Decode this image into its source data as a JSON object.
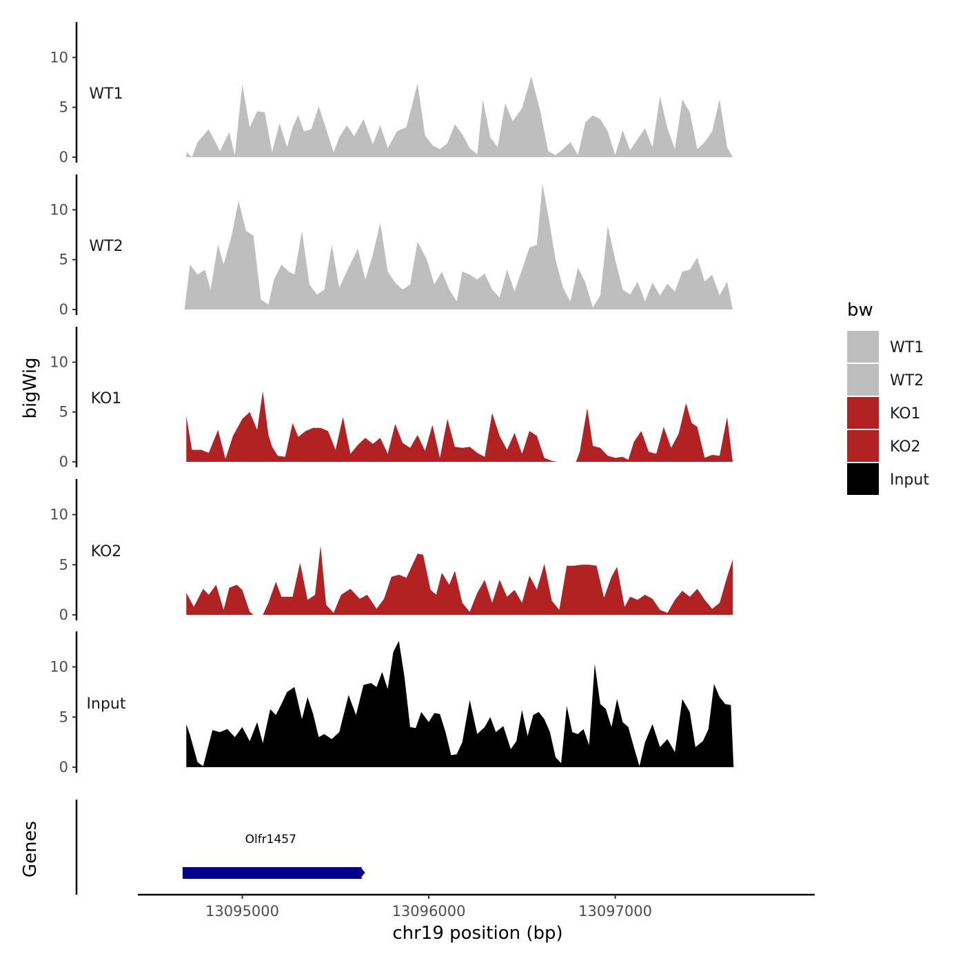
{
  "chart_data": {
    "type": "area",
    "x_axis": {
      "label": "chr19 position (bp)",
      "range": [
        13094440,
        13098070
      ],
      "ticks": [
        13095000,
        13096000,
        13097000
      ],
      "tick_labels": [
        "13095000",
        "13096000",
        "13097000"
      ]
    },
    "y_axis": {
      "label": "bigWig",
      "range": [
        0,
        13
      ],
      "ticks": [
        0,
        5,
        10
      ],
      "tick_labels": [
        "0",
        "5",
        "10"
      ]
    },
    "tracks": [
      {
        "name": "WT1",
        "color": "#bebebe",
        "x": [
          13094700,
          13094730,
          13094760,
          13094820,
          13094880,
          13094930,
          13094960,
          13095000,
          13095040,
          13095080,
          13095120,
          13095160,
          13095200,
          13095240,
          13095270,
          13095300,
          13095330,
          13095370,
          13095410,
          13095450,
          13095490,
          13095520,
          13095560,
          13095600,
          13095650,
          13095700,
          13095740,
          13095780,
          13095830,
          13095880,
          13095940,
          13095980,
          13096020,
          13096060,
          13096100,
          13096140,
          13096180,
          13096220,
          13096260,
          13096290,
          13096330,
          13096370,
          13096410,
          13096450,
          13096500,
          13096550,
          13096600,
          13096640,
          13096680,
          13096720,
          13096760,
          13096800,
          13096840,
          13096880,
          13096920,
          13096960,
          13097000,
          13097040,
          13097080,
          13097120,
          13097160,
          13097200,
          13097240,
          13097280,
          13097320,
          13097360,
          13097400,
          13097440,
          13097480,
          13097520,
          13097560,
          13097600,
          13097630
        ],
        "values": [
          0.5,
          0.0,
          1.5,
          2.8,
          0.6,
          2.5,
          0.2,
          7.3,
          3.0,
          4.6,
          4.5,
          0.5,
          3.4,
          1.0,
          3.0,
          4.2,
          2.6,
          2.8,
          5.1,
          2.8,
          0.5,
          2.0,
          3.2,
          2.1,
          3.8,
          1.3,
          3.2,
          0.9,
          2.6,
          3.0,
          7.4,
          2.2,
          1.2,
          0.8,
          1.4,
          3.3,
          2.3,
          0.9,
          0.3,
          5.8,
          2.0,
          1.0,
          5.4,
          3.6,
          4.9,
          8.1,
          4.5,
          0.6,
          0.2,
          0.8,
          1.5,
          0.2,
          3.5,
          4.2,
          3.8,
          2.6,
          0.2,
          2.7,
          0.7,
          1.8,
          2.9,
          1.0,
          6.1,
          2.9,
          0.8,
          5.8,
          4.5,
          0.8,
          1.5,
          2.6,
          5.8,
          1.0,
          0.0
        ]
      },
      {
        "name": "WT2",
        "color": "#bebebe",
        "x": [
          13094690,
          13094720,
          13094760,
          13094800,
          13094830,
          13094870,
          13094900,
          13094940,
          13094980,
          13095020,
          13095060,
          13095100,
          13095140,
          13095170,
          13095210,
          13095250,
          13095280,
          13095320,
          13095360,
          13095400,
          13095440,
          13095480,
          13095520,
          13095570,
          13095620,
          13095660,
          13095700,
          13095740,
          13095780,
          13095820,
          13095860,
          13095900,
          13095940,
          13095990,
          13096030,
          13096070,
          13096110,
          13096150,
          13096180,
          13096220,
          13096260,
          13096300,
          13096340,
          13096380,
          13096420,
          13096460,
          13096500,
          13096540,
          13096580,
          13096610,
          13096640,
          13096680,
          13096720,
          13096760,
          13096800,
          13096840,
          13096880,
          13096920,
          13096960,
          13097000,
          13097040,
          13097080,
          13097120,
          13097160,
          13097200,
          13097240,
          13097280,
          13097320,
          13097360,
          13097400,
          13097440,
          13097480,
          13097520,
          13097560,
          13097600,
          13097630
        ],
        "values": [
          0.0,
          4.5,
          3.5,
          4.0,
          2.0,
          6.5,
          4.5,
          7.2,
          10.9,
          7.9,
          7.4,
          1.0,
          0.5,
          3.0,
          4.5,
          3.8,
          3.5,
          7.9,
          2.5,
          1.5,
          2.0,
          6.5,
          2.2,
          4.2,
          6.1,
          3.0,
          5.5,
          8.7,
          3.8,
          2.7,
          2.0,
          2.5,
          6.8,
          5.0,
          2.5,
          3.8,
          2.0,
          0.8,
          3.8,
          3.5,
          3.0,
          3.6,
          2.0,
          1.2,
          4.0,
          1.8,
          4.0,
          6.2,
          6.5,
          12.6,
          9.5,
          5.0,
          2.2,
          0.8,
          4.2,
          2.7,
          0.2,
          1.4,
          8.4,
          5.0,
          2.0,
          1.5,
          2.8,
          0.8,
          2.7,
          1.4,
          2.6,
          1.8,
          3.8,
          4.0,
          5.2,
          2.8,
          3.5,
          1.4,
          2.8,
          0.0
        ]
      },
      {
        "name": "KO1",
        "color": "#b22222",
        "x": [
          13094700,
          13094730,
          13094780,
          13094820,
          13094870,
          13094910,
          13094950,
          13095000,
          13095040,
          13095080,
          13095110,
          13095140,
          13095160,
          13095190,
          13095230,
          13095270,
          13095300,
          13095340,
          13095380,
          13095420,
          13095460,
          13095500,
          13095540,
          13095580,
          13095620,
          13095660,
          13095700,
          13095740,
          13095780,
          13095820,
          13095860,
          13095900,
          13095940,
          13095980,
          13096020,
          13096060,
          13096100,
          13096140,
          13096180,
          13096220,
          13096260,
          13096300,
          13096340,
          13096380,
          13096420,
          13096460,
          13096500,
          13096540,
          13096580,
          13096620,
          13096660,
          13096690
        ],
        "values": [
          4.6,
          1.2,
          1.2,
          0.9,
          3.2,
          0.3,
          2.6,
          4.3,
          5.0,
          3.2,
          7.1,
          2.7,
          1.5,
          0.6,
          0.5,
          3.9,
          2.5,
          3.1,
          3.4,
          3.4,
          3.1,
          1.2,
          4.5,
          0.8,
          1.7,
          2.4,
          1.8,
          2.4,
          0.8,
          3.8,
          1.9,
          1.4,
          2.7,
          1.1,
          3.7,
          0.4,
          4.3,
          1.5,
          1.4,
          1.5,
          0.9,
          0.5,
          4.9,
          2.6,
          1.2,
          2.9,
          0.8,
          3.1,
          2.6,
          0.4,
          0.1,
          0.0
        ]
      },
      {
        "name": "KO1",
        "color": "#b22222",
        "x": [
          13096790,
          13096810,
          13096850,
          13096880,
          13096920,
          13096960,
          13097000,
          13097040,
          13097070,
          13097100,
          13097140,
          13097180,
          13097220,
          13097260,
          13097300,
          13097340,
          13097380,
          13097410,
          13097440,
          13097480,
          13097520,
          13097560,
          13097600,
          13097630
        ],
        "values": [
          0.0,
          1.0,
          5.4,
          1.6,
          1.4,
          0.6,
          0.4,
          0.5,
          0.2,
          2.0,
          3.1,
          1.0,
          0.8,
          3.5,
          1.4,
          2.8,
          5.9,
          3.9,
          3.5,
          0.4,
          0.7,
          0.6,
          4.5,
          0.0
        ]
      },
      {
        "name": "KO2",
        "color": "#b22222",
        "x": [
          13094700,
          13094740,
          13094790,
          13094820,
          13094860,
          13094900,
          13094930,
          13094970,
          13095000,
          13095040,
          13095060
        ],
        "values": [
          2.2,
          0.8,
          2.6,
          2.0,
          3.0,
          0.5,
          2.7,
          3.0,
          2.5,
          0.3,
          0.0
        ]
      },
      {
        "name": "KO2",
        "color": "#b22222",
        "x": [
          13095110,
          13095140,
          13095180,
          13095210,
          13095270,
          13095310,
          13095350,
          13095390,
          13095420,
          13095450,
          13095490,
          13095530,
          13095580,
          13095630,
          13095670,
          13095720,
          13095760,
          13095800,
          13095840,
          13095880,
          13095940,
          13095970,
          13096010,
          13096040,
          13096070,
          13096110,
          13096140,
          13096180,
          13096220,
          13096260,
          13096300,
          13096340,
          13096380,
          13096420,
          13096460,
          13096500,
          13096540,
          13096580,
          13096620,
          13096660,
          13096700,
          13096740,
          13096780,
          13096820,
          13096860,
          13096900,
          13096940,
          13096980,
          13097010,
          13097050,
          13097080,
          13097120,
          13097160,
          13097200,
          13097240,
          13097280,
          13097320,
          13097360,
          13097400,
          13097440,
          13097480,
          13097520,
          13097560,
          13097600,
          13097630
        ],
        "values": [
          0.0,
          1.2,
          3.3,
          1.8,
          1.8,
          5.2,
          1.5,
          2.0,
          6.9,
          1.0,
          0.2,
          2.0,
          2.6,
          1.6,
          2.0,
          0.6,
          1.6,
          3.8,
          4.0,
          3.7,
          6.1,
          6.0,
          2.5,
          2.0,
          4.2,
          3.0,
          4.4,
          1.2,
          0.3,
          2.2,
          3.5,
          1.2,
          3.5,
          1.8,
          2.5,
          1.2,
          3.9,
          2.5,
          5.1,
          1.4,
          0.5,
          4.9,
          4.9,
          5.0,
          5.0,
          4.9,
          1.7,
          3.8,
          4.8,
          0.8,
          1.8,
          1.5,
          2.0,
          1.6,
          0.5,
          0.2,
          1.5,
          2.4,
          1.8,
          2.6,
          1.5,
          0.6,
          1.2,
          3.8,
          5.5
        ]
      },
      {
        "name": "Input",
        "color": "#000000",
        "x": [
          13094700,
          13094720,
          13094760,
          13094790,
          13094840,
          13094880,
          13094920,
          13094960,
          13095000,
          13095040,
          13095080,
          13095110,
          13095150,
          13095180,
          13095210,
          13095240,
          13095280,
          13095320,
          13095350,
          13095380,
          13095410,
          13095440,
          13095480,
          13095520,
          13095570,
          13095610,
          13095650,
          13095690,
          13095720,
          13095750,
          13095780,
          13095810,
          13095840,
          13095870,
          13095900,
          13095930,
          13095960,
          13096000,
          13096030,
          13096060,
          13096090,
          13096120,
          13096150,
          13096180,
          13096220,
          13096260,
          13096300,
          13096330,
          13096360,
          13096400,
          13096440,
          13096470,
          13096500,
          13096530,
          13096560,
          13096590,
          13096620,
          13096650,
          13096680,
          13096710,
          13096740,
          13096770,
          13096800,
          13096830,
          13096860,
          13096890,
          13096920,
          13096950,
          13096980,
          13097010,
          13097040,
          13097070,
          13097100,
          13097130,
          13097160,
          13097200,
          13097240,
          13097280,
          13097320,
          13097360,
          13097400,
          13097430,
          13097470,
          13097500,
          13097530,
          13097560,
          13097590,
          13097620,
          13097635
        ],
        "values": [
          4.3,
          3.2,
          0.5,
          0.1,
          3.7,
          3.5,
          3.8,
          3.0,
          4.0,
          2.6,
          4.5,
          2.4,
          5.8,
          5.2,
          6.3,
          7.5,
          8.0,
          4.8,
          7.0,
          5.3,
          3.0,
          3.3,
          2.8,
          3.5,
          7.2,
          5.2,
          8.2,
          8.4,
          8.0,
          9.5,
          7.8,
          11.5,
          12.6,
          9.0,
          4.0,
          3.9,
          5.5,
          4.5,
          5.4,
          5.3,
          3.5,
          1.2,
          1.3,
          2.5,
          6.7,
          3.3,
          4.0,
          5.0,
          3.5,
          4.1,
          1.8,
          2.6,
          5.7,
          3.1,
          5.2,
          5.5,
          4.8,
          3.5,
          1.0,
          0.4,
          6.1,
          3.5,
          3.3,
          3.8,
          2.2,
          10.3,
          6.3,
          5.8,
          4.0,
          6.8,
          4.5,
          4.0,
          2.0,
          0.1,
          2.5,
          4.3,
          2.0,
          2.8,
          1.5,
          6.8,
          5.5,
          2.0,
          2.6,
          3.8,
          8.3,
          7.0,
          6.3,
          6.2,
          0.0
        ]
      }
    ],
    "legend": {
      "title": "bw",
      "position": "right",
      "entries": [
        {
          "label": "WT1",
          "color": "#bebebe"
        },
        {
          "label": "WT2",
          "color": "#bebebe"
        },
        {
          "label": "KO1",
          "color": "#b22222"
        },
        {
          "label": "KO2",
          "color": "#b22222"
        },
        {
          "label": "Input",
          "color": "#000000"
        }
      ]
    },
    "genes": {
      "label": "Genes",
      "items": [
        {
          "name": "Olfr1457",
          "start": 13094680,
          "end": 13095640,
          "color": "#00008b"
        }
      ]
    }
  }
}
